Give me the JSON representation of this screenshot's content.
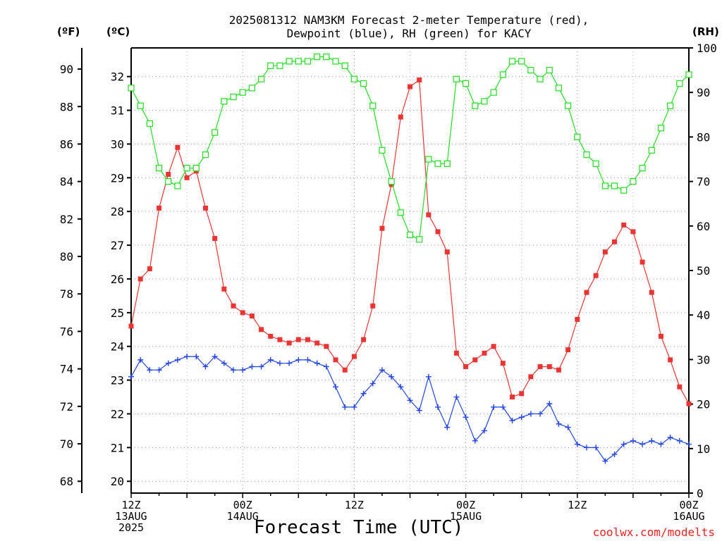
{
  "title_line1": "2025081312 NAM3KM Forecast 2-meter Temperature (red),",
  "title_line2": "Dewpoint (blue), RH (green) for KACY",
  "unit_f": "(ºF)",
  "unit_c": "(ºC)",
  "unit_rh": "(RH)",
  "xlabel": "Forecast Time (UTC)",
  "credit": "coolwx.com/modelts",
  "chart_data": {
    "type": "line",
    "title": "2025081312 NAM3KM Forecast 2-meter Temperature (red), Dewpoint (blue), RH (green) for KACY",
    "xlabel": "Forecast Time (UTC)",
    "x_hours": [
      0,
      1,
      2,
      3,
      4,
      5,
      6,
      7,
      8,
      9,
      10,
      11,
      12,
      13,
      14,
      15,
      16,
      17,
      18,
      19,
      20,
      21,
      22,
      23,
      24,
      25,
      26,
      27,
      28,
      29,
      30,
      31,
      32,
      33,
      34,
      35,
      36,
      37,
      38,
      39,
      40,
      41,
      42,
      43,
      44,
      45,
      46,
      47,
      48,
      49,
      50,
      51,
      52,
      53,
      54,
      55,
      56,
      57,
      58,
      59,
      60
    ],
    "x_ticks": [
      {
        "hour": 0,
        "lines": [
          "12Z",
          "13AUG",
          "2025"
        ]
      },
      {
        "hour": 12,
        "lines": [
          "00Z",
          "14AUG"
        ]
      },
      {
        "hour": 24,
        "lines": [
          "12Z"
        ]
      },
      {
        "hour": 36,
        "lines": [
          "00Z",
          "15AUG"
        ]
      },
      {
        "hour": 48,
        "lines": [
          "12Z"
        ]
      },
      {
        "hour": 60,
        "lines": [
          "00Z",
          "16AUG"
        ]
      }
    ],
    "celsius_axis": {
      "ticks": [
        20,
        21,
        22,
        23,
        24,
        25,
        26,
        27,
        28,
        29,
        30,
        31,
        32
      ],
      "range": [
        19.65,
        32.85
      ]
    },
    "fahrenheit_axis": {
      "ticks": [
        68,
        70,
        72,
        74,
        76,
        78,
        80,
        82,
        84,
        86,
        88,
        90
      ]
    },
    "rh_axis": {
      "ticks": [
        0,
        10,
        20,
        30,
        40,
        50,
        60,
        70,
        80,
        90,
        100
      ],
      "range": [
        0,
        100
      ]
    },
    "series": [
      {
        "name": "Temperature",
        "unit": "C",
        "color": "#ee3333",
        "marker": "filled-square",
        "values": [
          24.6,
          26.0,
          26.3,
          28.1,
          29.1,
          29.9,
          29.0,
          29.2,
          28.1,
          27.2,
          25.7,
          25.2,
          25.0,
          24.9,
          24.5,
          24.3,
          24.2,
          24.1,
          24.2,
          24.2,
          24.1,
          24.0,
          23.6,
          23.3,
          23.7,
          24.2,
          25.2,
          27.5,
          28.8,
          30.8,
          31.7,
          31.9,
          27.9,
          27.4,
          26.8,
          23.8,
          23.4,
          23.6,
          23.8,
          24.0,
          23.5,
          22.5,
          22.6,
          23.1,
          23.4,
          23.4,
          23.3,
          23.9,
          24.8,
          25.6,
          26.1,
          26.8,
          27.1,
          27.6,
          27.4,
          26.5,
          25.6,
          24.3,
          23.6,
          22.8,
          22.3
        ]
      },
      {
        "name": "Dewpoint",
        "unit": "C",
        "color": "#2244ee",
        "marker": "plus",
        "values": [
          23.1,
          23.6,
          23.3,
          23.3,
          23.5,
          23.6,
          23.7,
          23.7,
          23.4,
          23.7,
          23.5,
          23.3,
          23.3,
          23.4,
          23.4,
          23.6,
          23.5,
          23.5,
          23.6,
          23.6,
          23.5,
          23.4,
          22.8,
          22.2,
          22.2,
          22.6,
          22.9,
          23.3,
          23.1,
          22.8,
          22.4,
          22.1,
          23.1,
          22.2,
          21.6,
          22.5,
          21.9,
          21.2,
          21.5,
          22.2,
          22.2,
          21.8,
          21.9,
          22.0,
          22.0,
          22.3,
          21.7,
          21.6,
          21.1,
          21.0,
          21.0,
          20.6,
          20.8,
          21.1,
          21.2,
          21.1,
          21.2,
          21.1,
          21.3,
          21.2,
          21.1
        ]
      },
      {
        "name": "RH",
        "unit": "%",
        "color": "#22dd22",
        "marker": "open-square",
        "values": [
          91,
          87,
          83,
          73,
          70,
          69,
          73,
          73,
          76,
          81,
          88,
          89,
          90,
          91,
          93,
          96,
          96,
          97,
          97,
          97,
          98,
          98,
          97,
          96,
          93,
          92,
          87,
          77,
          70,
          63,
          58,
          57,
          75,
          74,
          74,
          93,
          92,
          87,
          88,
          90,
          94,
          97,
          97,
          95,
          93,
          95,
          91,
          87,
          80,
          76,
          74,
          69,
          69,
          68,
          70,
          73,
          77,
          82,
          87,
          92,
          94
        ]
      }
    ]
  }
}
